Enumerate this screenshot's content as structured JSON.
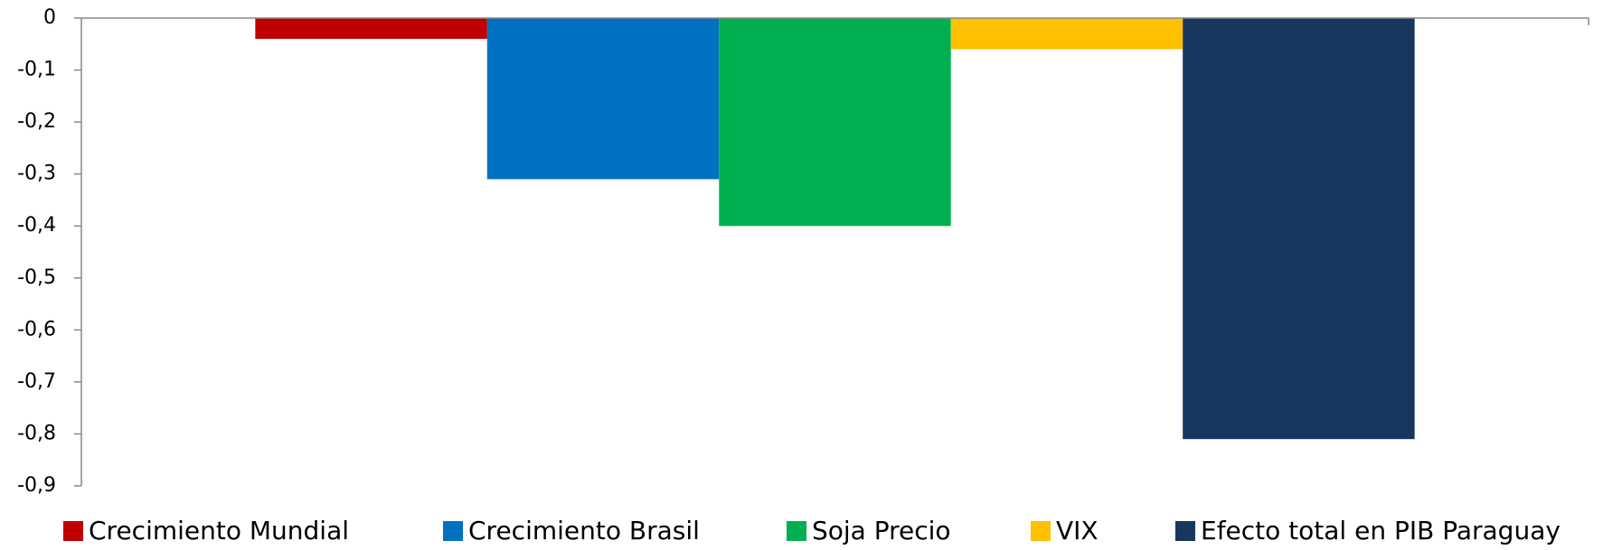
{
  "chart_data": {
    "type": "bar",
    "series": [
      {
        "name": "Crecimiento Mundial",
        "color": "#c00000",
        "values": [
          -0.04
        ]
      },
      {
        "name": "Crecimiento Brasil",
        "color": "#0070c0",
        "values": [
          -0.31
        ]
      },
      {
        "name": "Soja Precio",
        "color": "#00b050",
        "values": [
          -0.4
        ]
      },
      {
        "name": "VIX",
        "color": "#ffc000",
        "values": [
          -0.06
        ]
      },
      {
        "name": "Efecto total en PIB Paraguay",
        "color": "#17375e",
        "values": [
          -0.81
        ]
      }
    ],
    "ylim": [
      -0.9,
      0
    ],
    "yticks": [
      0,
      {
        "value": -0.1,
        "label": "-0,1"
      },
      {
        "value": -0.2,
        "label": "-0,2"
      },
      {
        "value": -0.3,
        "label": "-0,3"
      },
      {
        "value": -0.4,
        "label": "-0,4"
      },
      {
        "value": -0.5,
        "label": "-0,5"
      },
      {
        "value": -0.6,
        "label": "-0,6"
      },
      {
        "value": -0.7,
        "label": "-0,7"
      },
      {
        "value": -0.8,
        "label": "-0,8"
      },
      {
        "value": -0.9,
        "label": "-0,9"
      }
    ],
    "legend": "bottom"
  }
}
